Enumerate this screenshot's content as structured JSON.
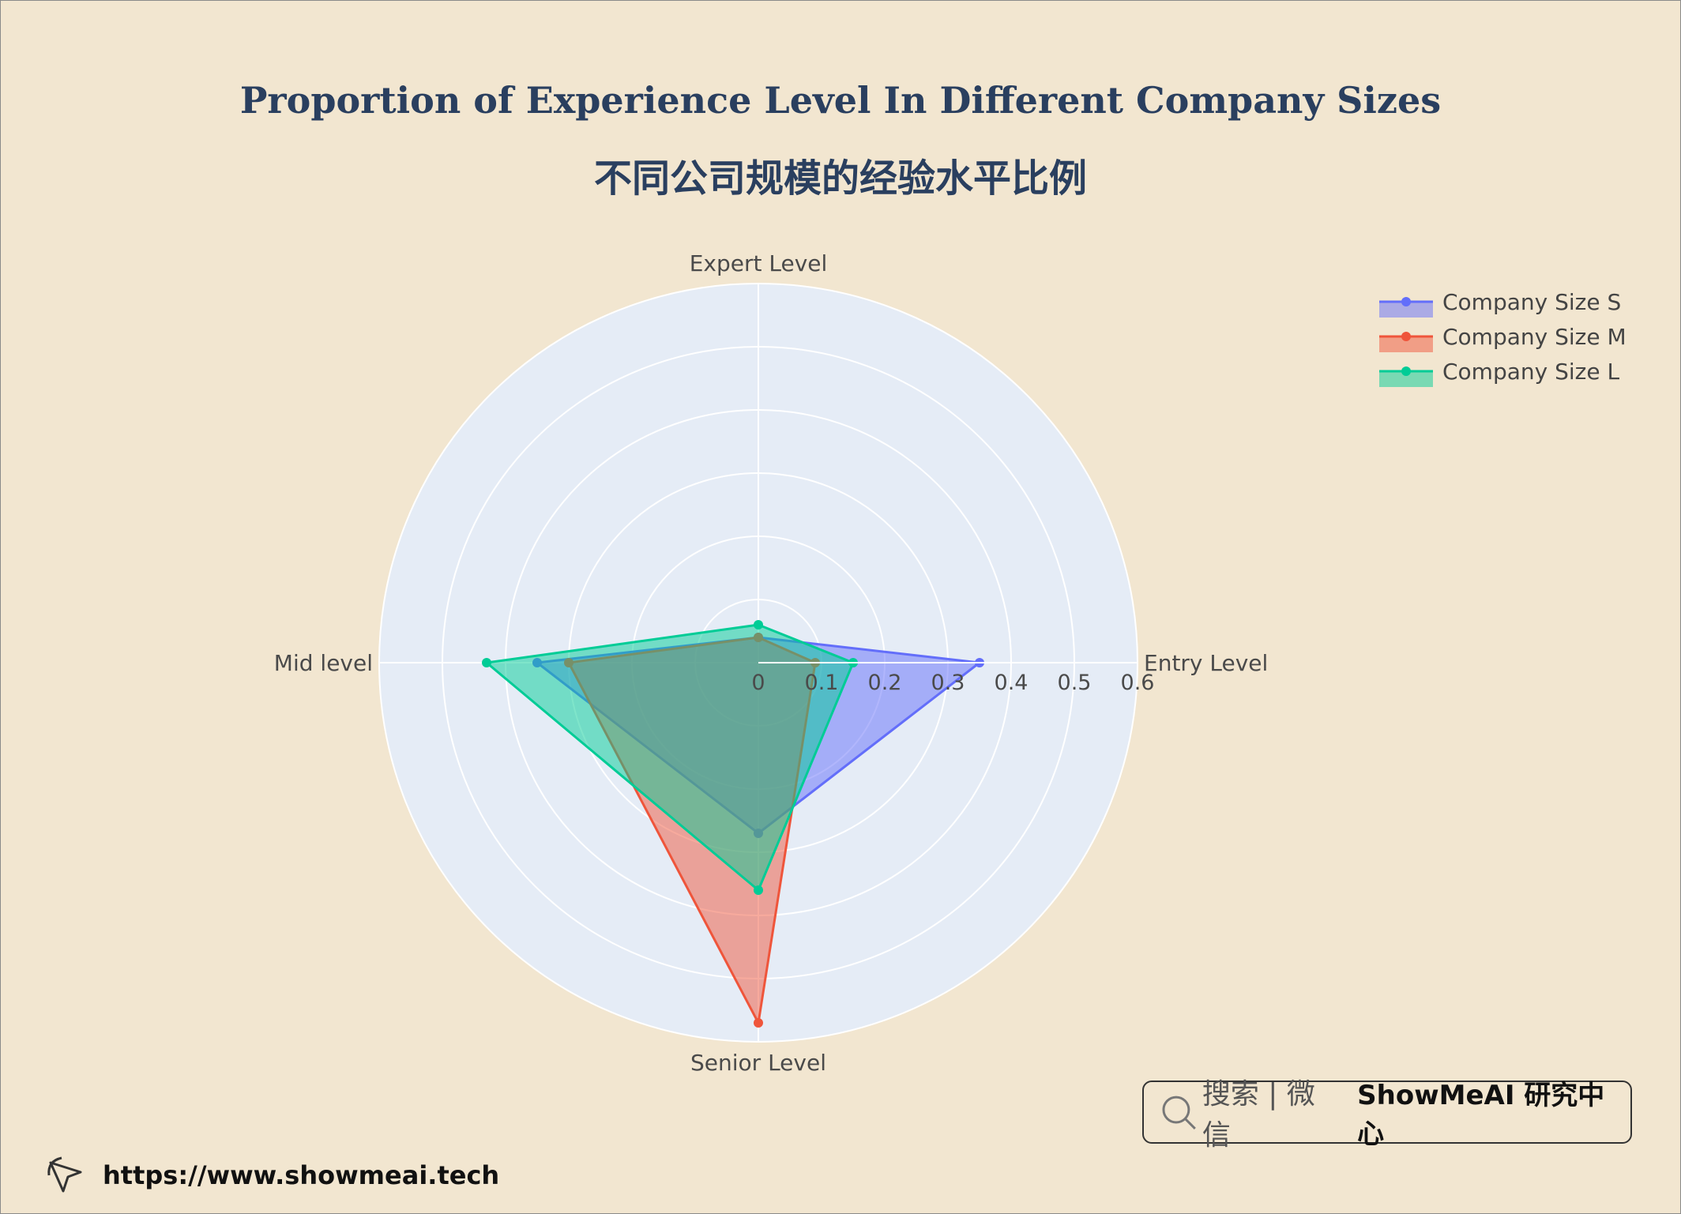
{
  "chart_data": {
    "type": "radar",
    "title": "Proportion of Experience Level In Different Company Sizes",
    "subtitle": "不同公司规模的经验水平比例",
    "axes": [
      "Entry Level",
      "Expert Level",
      "Mid level",
      "Senior Level"
    ],
    "radial_range": [
      0,
      0.6
    ],
    "radial_ticks": [
      "0",
      "0.1",
      "0.2",
      "0.3",
      "0.4",
      "0.5",
      "0.6"
    ],
    "grid": true,
    "legend_position": "top-right",
    "series": [
      {
        "name": "Company Size S",
        "color": "#636efa",
        "values": [
          0.35,
          0.04,
          0.35,
          0.27
        ]
      },
      {
        "name": "Company Size M",
        "color": "#ef553b",
        "values": [
          0.09,
          0.04,
          0.3,
          0.57
        ]
      },
      {
        "name": "Company Size L",
        "color": "#00cc96",
        "values": [
          0.15,
          0.06,
          0.43,
          0.36
        ]
      }
    ]
  },
  "branding": {
    "search_label": "搜索 | 微信",
    "brand_name": "ShowMeAI 研究中心",
    "url": "https://www.showmeai.tech"
  }
}
